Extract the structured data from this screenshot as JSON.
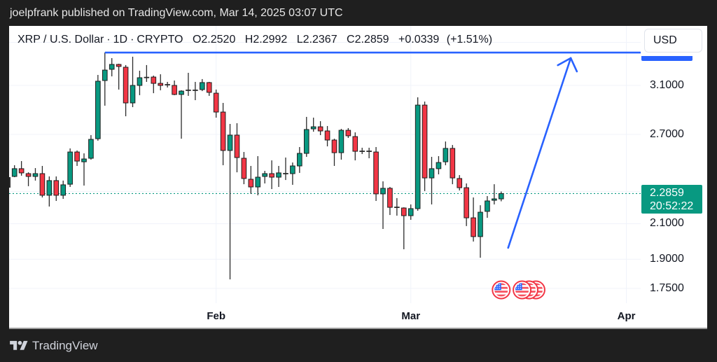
{
  "header": {
    "publish_line": "joelpfrank published on TradingView.com, Mar 14, 2025 03:07 UTC"
  },
  "legend": {
    "symbol": "XRP / U.S. Dollar",
    "separator": "·",
    "interval": "1D",
    "exchange": "CRYPTO",
    "open_label": "O",
    "open": "2.2520",
    "high_label": "H",
    "high": "2.2992",
    "low_label": "L",
    "low": "2.2367",
    "close_label": "C",
    "close": "2.2859",
    "change": "+0.0339",
    "change_pct": "(+1.51%)"
  },
  "price_scale": {
    "currency_button": "USD",
    "tick_labels": [
      {
        "text": "3.1000",
        "value": 3.1
      },
      {
        "text": "2.7000",
        "value": 2.7
      },
      {
        "text": "2.1000",
        "value": 2.1
      },
      {
        "text": "1.9000",
        "value": 1.9
      },
      {
        "text": "1.7500",
        "value": 1.75
      }
    ],
    "last_price": "2.2859",
    "countdown": "20:52:22"
  },
  "time_axis": {
    "labels": [
      {
        "text": "Feb",
        "date": "2025-02-01"
      },
      {
        "text": "Mar",
        "date": "2025-03-01"
      },
      {
        "text": "Apr",
        "date": "2025-04-01"
      }
    ]
  },
  "footer": {
    "brand": "TradingView",
    "logo_icon": "tradingview-logo-icon"
  },
  "colors": {
    "background": "#1f1f1f",
    "panel": "#ffffff",
    "up": "#089981",
    "down": "#f23645",
    "wick": "#2b2b2b",
    "border": "#1e1e1e",
    "grid": "#f0f3fa",
    "drawing": "#2962ff",
    "last_price": "#089981",
    "flag_ring": "#f23645",
    "flag_stripe": "#f7525f",
    "flag_canton": "#2962ff"
  },
  "chart_data": {
    "type": "candlestick",
    "title": "XRP / U.S. Dollar · 1D · CRYPTO",
    "xlabel": "",
    "ylabel": "USD",
    "y_scale": "log",
    "ylim": [
      1.68,
      3.67
    ],
    "xlim": [
      "2025-01-03",
      "2025-04-03"
    ],
    "grid": true,
    "legend_position": "top-left",
    "y_gridlines": [
      3.5,
      3.1,
      2.7,
      2.3,
      2.1,
      1.9,
      1.75
    ],
    "last_price": 2.2859,
    "x": [
      "2025-01-03",
      "2025-01-04",
      "2025-01-05",
      "2025-01-06",
      "2025-01-07",
      "2025-01-08",
      "2025-01-09",
      "2025-01-10",
      "2025-01-11",
      "2025-01-12",
      "2025-01-13",
      "2025-01-14",
      "2025-01-15",
      "2025-01-16",
      "2025-01-17",
      "2025-01-18",
      "2025-01-19",
      "2025-01-20",
      "2025-01-21",
      "2025-01-22",
      "2025-01-23",
      "2025-01-24",
      "2025-01-25",
      "2025-01-26",
      "2025-01-27",
      "2025-01-28",
      "2025-01-29",
      "2025-01-30",
      "2025-01-31",
      "2025-02-01",
      "2025-02-02",
      "2025-02-03",
      "2025-02-04",
      "2025-02-05",
      "2025-02-06",
      "2025-02-07",
      "2025-02-08",
      "2025-02-09",
      "2025-02-10",
      "2025-02-11",
      "2025-02-12",
      "2025-02-13",
      "2025-02-14",
      "2025-02-15",
      "2025-02-16",
      "2025-02-17",
      "2025-02-18",
      "2025-02-19",
      "2025-02-20",
      "2025-02-21",
      "2025-02-22",
      "2025-02-23",
      "2025-02-24",
      "2025-02-25",
      "2025-02-26",
      "2025-02-27",
      "2025-02-28",
      "2025-03-01",
      "2025-03-02",
      "2025-03-03",
      "2025-03-04",
      "2025-03-05",
      "2025-03-06",
      "2025-03-07",
      "2025-03-08",
      "2025-03-09",
      "2025-03-10",
      "2025-03-11",
      "2025-03-12",
      "2025-03-13",
      "2025-03-14"
    ],
    "open": [
      2.399,
      2.452,
      2.418,
      2.399,
      2.418,
      2.275,
      2.371,
      2.275,
      2.347,
      2.57,
      2.5,
      2.525,
      2.668,
      3.143,
      3.244,
      3.289,
      3.263,
      2.951,
      3.1,
      3.17,
      3.174,
      3.118,
      3.106,
      3.1,
      3.022,
      3.058,
      3.058,
      3.064,
      3.125,
      3.033,
      2.876,
      2.581,
      2.695,
      2.525,
      2.38,
      2.329,
      2.399,
      2.418,
      2.394,
      2.418,
      2.418,
      2.471,
      2.56,
      2.743,
      2.759,
      2.727,
      2.658,
      2.565,
      2.732,
      2.684,
      2.575,
      2.575,
      2.57,
      2.284,
      2.32,
      2.199,
      2.195,
      2.148,
      2.191,
      2.933,
      2.389,
      2.452,
      2.5,
      2.596,
      2.385,
      2.324,
      2.135,
      2.025,
      2.174,
      2.243,
      2.252
    ],
    "high": [
      2.476,
      2.505,
      2.427,
      2.456,
      2.471,
      2.399,
      2.399,
      2.371,
      2.596,
      2.581,
      2.56,
      2.695,
      3.193,
      3.401,
      3.348,
      3.295,
      3.283,
      3.361,
      3.231,
      3.283,
      3.187,
      3.199,
      3.131,
      3.143,
      3.058,
      3.212,
      3.131,
      3.156,
      3.131,
      3.064,
      2.951,
      2.781,
      2.787,
      2.57,
      2.471,
      2.54,
      2.437,
      2.51,
      2.471,
      2.53,
      2.495,
      2.606,
      2.837,
      2.831,
      2.803,
      2.765,
      2.668,
      2.743,
      2.749,
      2.716,
      2.601,
      2.601,
      2.606,
      2.366,
      2.329,
      2.257,
      2.199,
      2.217,
      2.998,
      2.962,
      2.535,
      2.54,
      2.647,
      2.621,
      2.408,
      2.352,
      2.261,
      2.212,
      2.27,
      2.347,
      2.2992
    ],
    "low": [
      2.394,
      2.404,
      2.334,
      2.371,
      2.261,
      2.204,
      2.239,
      2.252,
      2.329,
      2.471,
      2.338,
      2.515,
      2.653,
      2.928,
      3.18,
      3.064,
      2.842,
      2.916,
      3.016,
      3.131,
      3.033,
      3.058,
      3.082,
      3.016,
      2.668,
      3.01,
      2.974,
      3.051,
      3.01,
      2.831,
      2.476,
      1.795,
      2.427,
      2.347,
      2.284,
      2.275,
      2.352,
      2.315,
      2.329,
      2.375,
      2.343,
      2.423,
      2.535,
      2.721,
      2.695,
      2.611,
      2.471,
      2.515,
      2.674,
      2.51,
      2.555,
      2.525,
      2.239,
      2.069,
      2.152,
      2.148,
      1.954,
      2.123,
      2.178,
      2.302,
      2.217,
      2.413,
      2.476,
      2.347,
      2.306,
      2.086,
      1.997,
      1.908,
      2.135,
      2.217,
      2.2367
    ],
    "close": [
      2.452,
      2.423,
      2.399,
      2.418,
      2.275,
      2.371,
      2.275,
      2.343,
      2.57,
      2.505,
      2.52,
      2.663,
      3.137,
      3.237,
      3.289,
      3.27,
      2.951,
      3.1,
      3.168,
      3.17,
      3.118,
      3.1,
      3.106,
      3.022,
      3.051,
      3.058,
      3.058,
      3.125,
      3.04,
      2.876,
      2.581,
      2.695,
      2.53,
      2.385,
      2.329,
      2.394,
      2.418,
      2.394,
      2.423,
      2.418,
      2.471,
      2.56,
      2.738,
      2.759,
      2.727,
      2.658,
      2.565,
      2.732,
      2.69,
      2.575,
      2.575,
      2.575,
      2.284,
      2.32,
      2.199,
      2.199,
      2.148,
      2.191,
      2.933,
      2.389,
      2.452,
      2.495,
      2.596,
      2.389,
      2.324,
      2.135,
      2.025,
      2.169,
      2.239,
      2.252,
      2.2859
    ],
    "annotations": [
      {
        "kind": "horizontal_line",
        "name": "resistance-line",
        "price": 3.401,
        "from_date": "2025-01-16",
        "color": "#2962ff"
      },
      {
        "kind": "arrow",
        "name": "projection-arrow",
        "from": {
          "date": "2025-03-15",
          "price": 1.962
        },
        "to": {
          "date": "2025-03-24",
          "price": 3.348
        },
        "color": "#2962ff"
      }
    ],
    "events": [
      {
        "date": "2025-03-14",
        "country": "US",
        "icon": "us-flag-icon"
      },
      {
        "date": "2025-03-19",
        "country": "US",
        "icon": "us-flag-icon"
      },
      {
        "date": "2025-03-18",
        "country": "US",
        "icon": "us-flag-icon"
      },
      {
        "date": "2025-03-17",
        "country": "US",
        "icon": "us-flag-icon"
      }
    ]
  }
}
